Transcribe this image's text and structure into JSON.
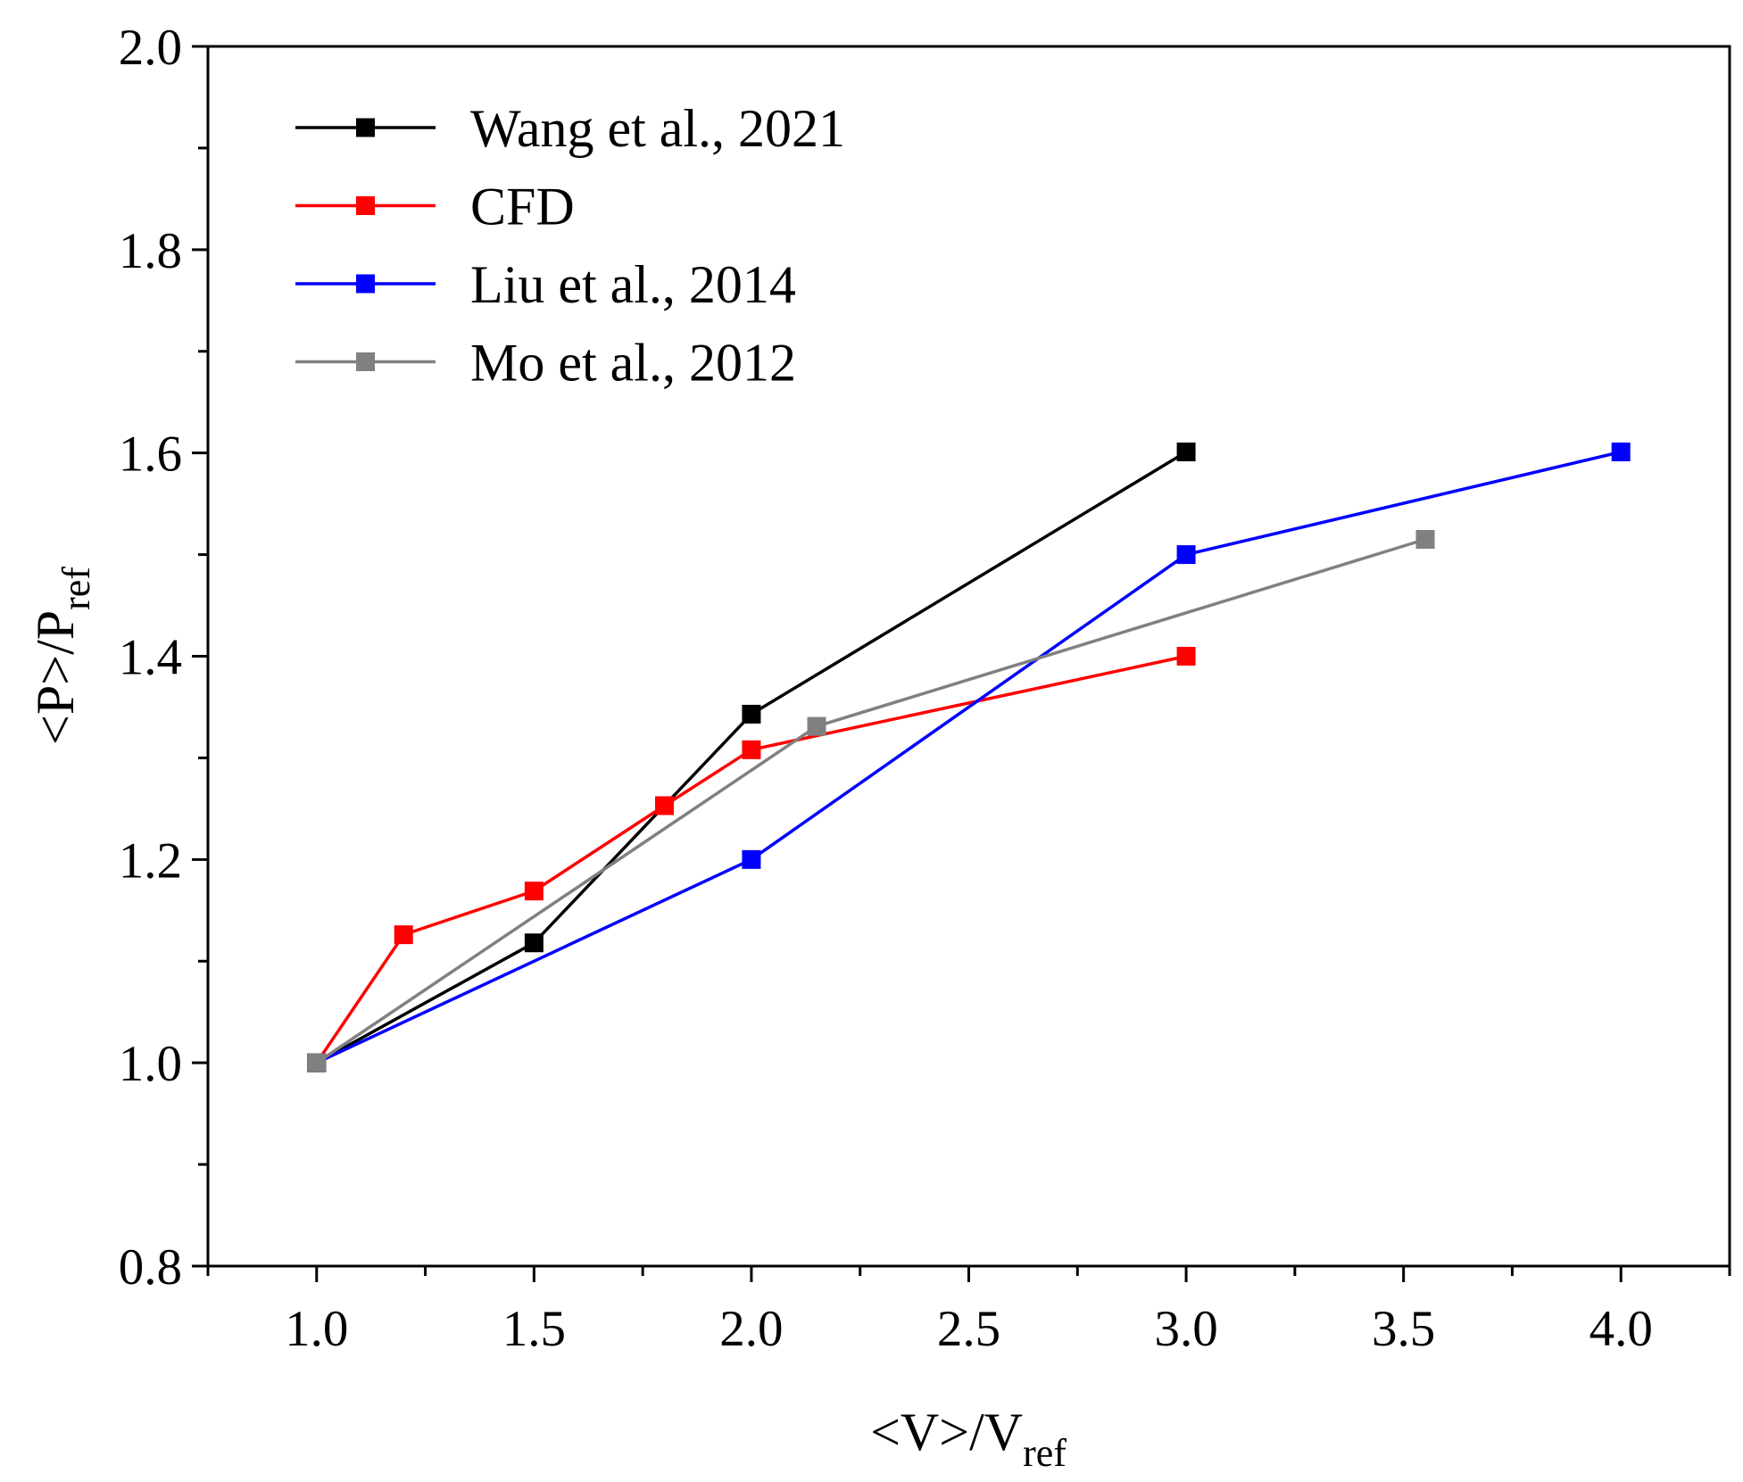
{
  "chart_data": {
    "type": "line",
    "title": "",
    "xlabel": {
      "main": "<V>/V",
      "sub": "ref"
    },
    "ylabel": {
      "main": "<P>/P",
      "sub": "ref"
    },
    "xlim": [
      0.75,
      4.25
    ],
    "ylim": [
      0.8,
      2.0
    ],
    "xticks": [
      1.0,
      1.5,
      2.0,
      2.5,
      3.0,
      3.5,
      4.0
    ],
    "xtick_labels": [
      "1.0",
      "1.5",
      "2.0",
      "2.5",
      "3.0",
      "3.5",
      "4.0"
    ],
    "yticks": [
      0.8,
      1.0,
      1.2,
      1.4,
      1.6,
      1.8,
      2.0
    ],
    "ytick_labels": [
      "0.8",
      "1.0",
      "1.2",
      "1.4",
      "1.6",
      "1.8",
      "2.0"
    ],
    "grid": false,
    "legend_position": "top-left",
    "series": [
      {
        "name": "Wang et al., 2021",
        "color": "#000000",
        "x": [
          1.0,
          1.5,
          2.0,
          3.0
        ],
        "y": [
          1.0,
          1.118,
          1.343,
          1.601
        ]
      },
      {
        "name": "CFD",
        "color": "#ff0000",
        "x": [
          1.0,
          1.2,
          1.5,
          1.8,
          2.0,
          3.0
        ],
        "y": [
          1.0,
          1.126,
          1.169,
          1.253,
          1.308,
          1.4
        ]
      },
      {
        "name": "Liu et al., 2014",
        "color": "#0000ff",
        "x": [
          1.0,
          2.0,
          3.0,
          4.0
        ],
        "y": [
          1.0,
          1.2,
          1.5,
          1.601
        ]
      },
      {
        "name": "Mo et al., 2012",
        "color": "#808080",
        "x": [
          1.0,
          2.15,
          3.55
        ],
        "y": [
          1.0,
          1.331,
          1.515
        ]
      }
    ]
  }
}
